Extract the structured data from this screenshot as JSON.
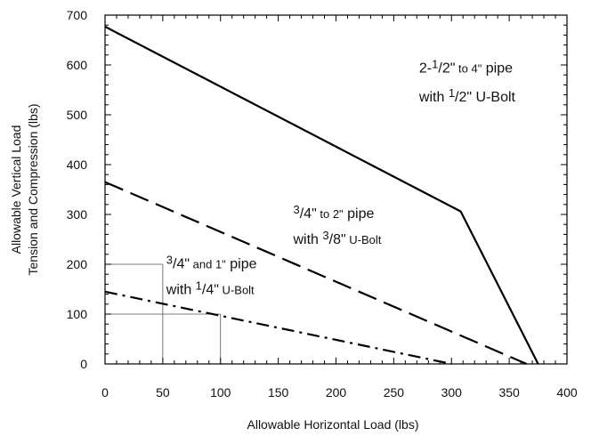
{
  "chart_data": {
    "type": "line",
    "xlabel": "Allowable Horizontal Load (lbs)",
    "ylabel_lines": [
      "Allowable Vertical Load",
      "Tension and Compression (lbs)"
    ],
    "xlim": [
      0,
      400
    ],
    "ylim": [
      0,
      700
    ],
    "x_ticks": [
      0,
      50,
      100,
      150,
      200,
      250,
      300,
      350,
      400
    ],
    "y_ticks": [
      0,
      100,
      200,
      300,
      400,
      500,
      600,
      700
    ],
    "grid": "partial",
    "series": [
      {
        "name": "2-1/2\" to 4\" pipe with 1/2\" U-Bolt",
        "style": "solid",
        "color": "#000000",
        "points": [
          [
            0,
            677
          ],
          [
            308,
            306
          ],
          [
            375,
            0
          ]
        ]
      },
      {
        "name": "3/4\" to 2\" pipe with 3/8\" U-Bolt",
        "style": "dashed",
        "color": "#000000",
        "points": [
          [
            0,
            365
          ],
          [
            365,
            0
          ]
        ]
      },
      {
        "name": "3/4\" and 1\" pipe with 1/4\" U-Bolt",
        "style": "dashdot",
        "color": "#000000",
        "points": [
          [
            0,
            145
          ],
          [
            300,
            0
          ]
        ]
      }
    ],
    "annotations": [
      {
        "id": "large",
        "lines": [
          [
            {
              "t": "2-",
              "c": ""
            },
            {
              "t": "1",
              "c": "sup"
            },
            {
              "t": "/2\"",
              "c": ""
            },
            {
              "t": " to 4\"",
              "c": "small"
            },
            {
              "t": " pipe",
              "c": ""
            }
          ],
          [
            {
              "t": "with ",
              "c": ""
            },
            {
              "t": "1",
              "c": "sup"
            },
            {
              "t": "/2\" U-Bolt",
              "c": ""
            }
          ]
        ],
        "x": 272,
        "y": 585,
        "line_gap": 58
      },
      {
        "id": "medium",
        "lines": [
          [
            {
              "t": "3",
              "c": "sup"
            },
            {
              "t": "/4\"",
              "c": ""
            },
            {
              "t": " to 2\"",
              "c": "small"
            },
            {
              "t": " pipe",
              "c": ""
            }
          ],
          [
            {
              "t": "with ",
              "c": ""
            },
            {
              "t": "3",
              "c": "sup"
            },
            {
              "t": "/8\"",
              "c": ""
            },
            {
              "t": " U-Bolt",
              "c": "small"
            }
          ]
        ],
        "x": 163,
        "y": 293,
        "line_gap": 52
      },
      {
        "id": "small",
        "lines": [
          [
            {
              "t": "3",
              "c": "sup"
            },
            {
              "t": "/4\"",
              "c": ""
            },
            {
              "t": " and 1\"",
              "c": "small"
            },
            {
              "t": " pipe",
              "c": ""
            }
          ],
          [
            {
              "t": "with ",
              "c": ""
            },
            {
              "t": "1",
              "c": "sup"
            },
            {
              "t": "/4\"",
              "c": ""
            },
            {
              "t": " U-Bolt",
              "c": "small"
            }
          ]
        ],
        "x": 53,
        "y": 192,
        "line_gap": 52
      }
    ]
  }
}
